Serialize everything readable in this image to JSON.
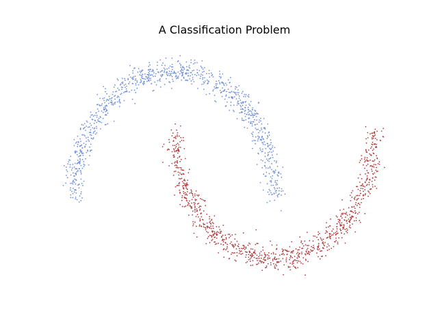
{
  "chart_data": {
    "type": "scatter",
    "title": "A Classification Problem",
    "xlabel": "",
    "ylabel": "",
    "xlim": [
      -1.2,
      2.2
    ],
    "ylim": [
      -0.75,
      1.25
    ],
    "grid": false,
    "axes_visible": false,
    "legend": "none",
    "noise": 0.05,
    "series": [
      {
        "color": "#6f8fdc",
        "shape": "upper-moon",
        "n_points": 1000
      },
      {
        "color": "#b03a3a",
        "shape": "lower-moon",
        "n_points": 1000
      }
    ]
  }
}
